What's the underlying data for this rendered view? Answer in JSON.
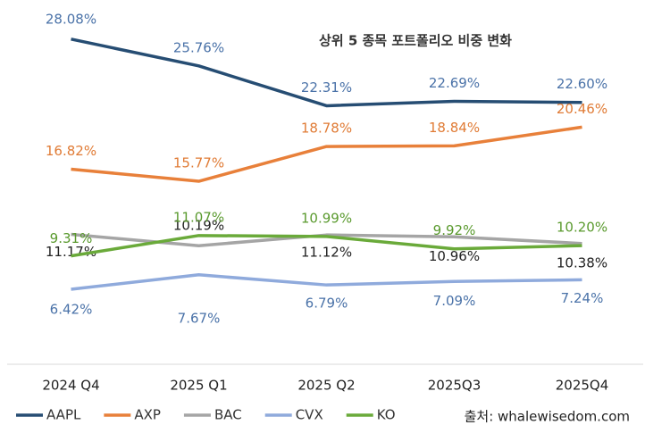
{
  "chart_data": {
    "type": "line",
    "title": "상위 5 종목 포트폴리오 비중 변화",
    "source": "출처: whalewisedom.com",
    "categories": [
      "2024 Q4",
      "2025 Q1",
      "2025 Q2",
      "2025Q3",
      "2025Q4"
    ],
    "ylim": [
      0,
      30
    ],
    "series": [
      {
        "name": "AAPL",
        "color": "#264d73",
        "label_color": "#4a72a8",
        "values": [
          28.08,
          25.76,
          22.31,
          22.69,
          22.6
        ],
        "value_labels": [
          "28.08%",
          "25.76%",
          "22.31%",
          "22.69%",
          "22.60%"
        ]
      },
      {
        "name": "AXP",
        "color": "#e8803a",
        "label_color": "#e07b35",
        "values": [
          16.82,
          15.77,
          18.78,
          18.84,
          20.46
        ],
        "value_labels": [
          "16.82%",
          "15.77%",
          "18.78%",
          "18.84%",
          "20.46%"
        ]
      },
      {
        "name": "BAC",
        "color": "#a5a5a5",
        "label_color": "#222222",
        "values": [
          11.17,
          10.19,
          11.12,
          10.96,
          10.38
        ],
        "value_labels": [
          "11.17%",
          "10.19%",
          "11.12%",
          "10.96%",
          "10.38%"
        ]
      },
      {
        "name": "CVX",
        "color": "#8faadc",
        "label_color": "#4a72a8",
        "values": [
          6.42,
          7.67,
          6.79,
          7.09,
          7.24
        ],
        "value_labels": [
          "6.42%",
          "7.67%",
          "6.79%",
          "7.09%",
          "7.24%"
        ]
      },
      {
        "name": "KO",
        "color": "#6aaa3a",
        "label_color": "#5a9a2e",
        "values": [
          9.31,
          11.07,
          10.99,
          9.92,
          10.2
        ],
        "value_labels": [
          "9.31%",
          "11.07%",
          "10.99%",
          "9.92%",
          "10.20%"
        ]
      }
    ]
  }
}
